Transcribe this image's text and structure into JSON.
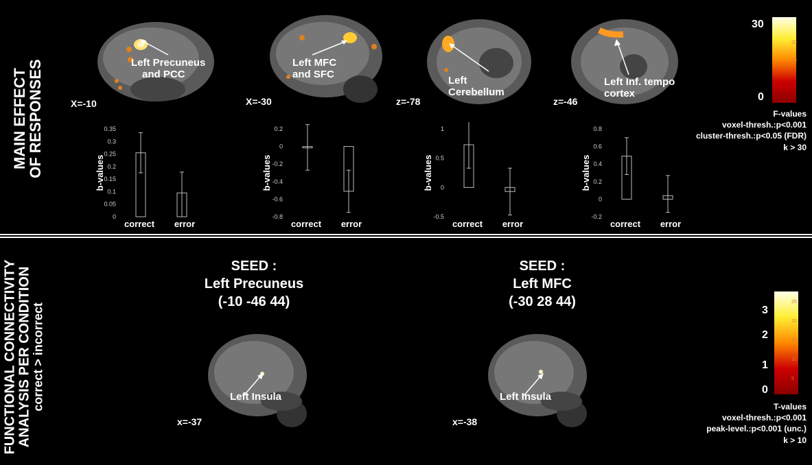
{
  "top": {
    "side_label": [
      "MAIN EFFECT",
      "OF RESPONSES"
    ],
    "panels": [
      {
        "coord": "X=-10",
        "annotation": [
          "Left Precuneus",
          "and PCC"
        ]
      },
      {
        "coord": "X=-30",
        "annotation": [
          "Left MFC",
          "and SFC"
        ]
      },
      {
        "coord": "z=-78",
        "annotation": [
          "Left",
          "Cerebellum"
        ]
      },
      {
        "coord": "z=-46",
        "annotation": [
          "Left Inf. tempo",
          "cortex"
        ]
      }
    ],
    "colorbar": {
      "max_label": "30",
      "min_label": "0",
      "ticks": [
        "20",
        "10"
      ],
      "stat": "F-values",
      "lines": [
        "voxel-thresh.:p<0.001",
        "cluster-thresh.:p<0.05 (FDR)",
        "k > 30"
      ]
    }
  },
  "bottom": {
    "side_label": [
      "FUNCTIONAL CONNECTIVITY",
      "ANALYSIS PER CONDITION",
      "correct > incorrect"
    ],
    "seeds": [
      {
        "lines": [
          "SEED :",
          "Left Precuneus",
          "(-10 -46 44)"
        ],
        "coord": "x=-37",
        "annotation": "Left Insula"
      },
      {
        "lines": [
          "SEED :",
          "Left MFC",
          "(-30 28 44)"
        ],
        "coord": "x=-38",
        "annotation": "Left Insula"
      }
    ],
    "colorbar": {
      "labels": [
        "3",
        "2",
        "1",
        "0"
      ],
      "ticks": [
        "25",
        "20",
        "15",
        "10",
        "5"
      ],
      "stat": "T-values",
      "lines": [
        "voxel-thresh.:p<0.001",
        "peak-level.:p<0.001 (unc.)",
        "k > 10"
      ]
    }
  },
  "chart_data": [
    {
      "type": "bar",
      "categories": [
        "correct",
        "error"
      ],
      "values": [
        0.255,
        0.095
      ],
      "error_low": [
        0.175,
        0.0
      ],
      "error_high": [
        0.335,
        0.178
      ],
      "ylabel": "b-values",
      "ylim": [
        0,
        0.35
      ],
      "yticks": [
        "0",
        "0.05",
        "0.1",
        "0.15",
        "0.2",
        "0.25",
        "0.3",
        "0.35"
      ]
    },
    {
      "type": "bar",
      "categories": [
        "correct",
        "error"
      ],
      "values": [
        -0.01,
        -0.51
      ],
      "error_low": [
        -0.27,
        -0.75
      ],
      "error_high": [
        0.25,
        -0.27
      ],
      "ylabel": "b-values",
      "ylim": [
        -0.8,
        0.2
      ],
      "yticks": [
        "-0.8",
        "-0.6",
        "-0.4",
        "-0.2",
        "0",
        "0.2"
      ]
    },
    {
      "type": "bar",
      "categories": [
        "correct",
        "error"
      ],
      "values": [
        0.73,
        -0.07
      ],
      "error_low": [
        0.33,
        -0.47
      ],
      "error_high": [
        1.15,
        0.33
      ],
      "ylabel": "b-values",
      "ylim": [
        -0.5,
        1
      ],
      "yticks": [
        "-0.5",
        "0",
        "0.5",
        "1"
      ]
    },
    {
      "type": "bar",
      "categories": [
        "correct",
        "error"
      ],
      "values": [
        0.49,
        0.04
      ],
      "error_low": [
        0.28,
        -0.15
      ],
      "error_high": [
        0.7,
        0.27
      ],
      "ylabel": "b-values",
      "ylim": [
        -0.2,
        0.8
      ],
      "yticks": [
        "-0.2",
        "0",
        "0.2",
        "0.4",
        "0.6",
        "0.8"
      ]
    }
  ]
}
